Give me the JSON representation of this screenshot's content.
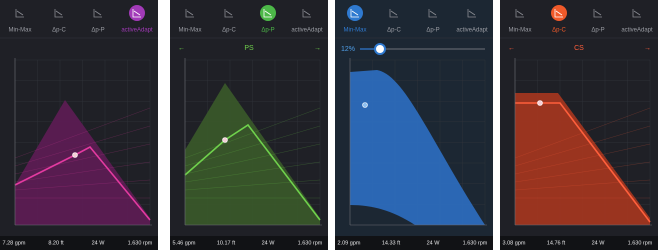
{
  "panels": [
    {
      "tabs": [
        "Min-Max",
        "Δp-C",
        "Δp-P",
        "activeAdapt"
      ],
      "footer": [
        "7.28 gpm",
        "8.20 ft",
        "24 W",
        "1.630 rpm"
      ]
    },
    {
      "tabs": [
        "Min-Max",
        "Δp-C",
        "Δp-P",
        "activeAdapt"
      ],
      "header": "PS",
      "footer": [
        "5.46 gpm",
        "10.17 ft",
        "24 W",
        "1.630 rpm"
      ]
    },
    {
      "tabs": [
        "Min-Max",
        "Δp-C",
        "Δp-P",
        "activeAdapt"
      ],
      "header": "12%",
      "footer": [
        "2.09 gpm",
        "14.33 ft",
        "24 W",
        "1.630 rpm"
      ]
    },
    {
      "tabs": [
        "Min-Max",
        "Δp-C",
        "Δp-P",
        "activeAdapt"
      ],
      "header": "CS",
      "footer": [
        "3.08 gpm",
        "14.76 ft",
        "24 W",
        "1.630 rpm"
      ]
    }
  ]
}
